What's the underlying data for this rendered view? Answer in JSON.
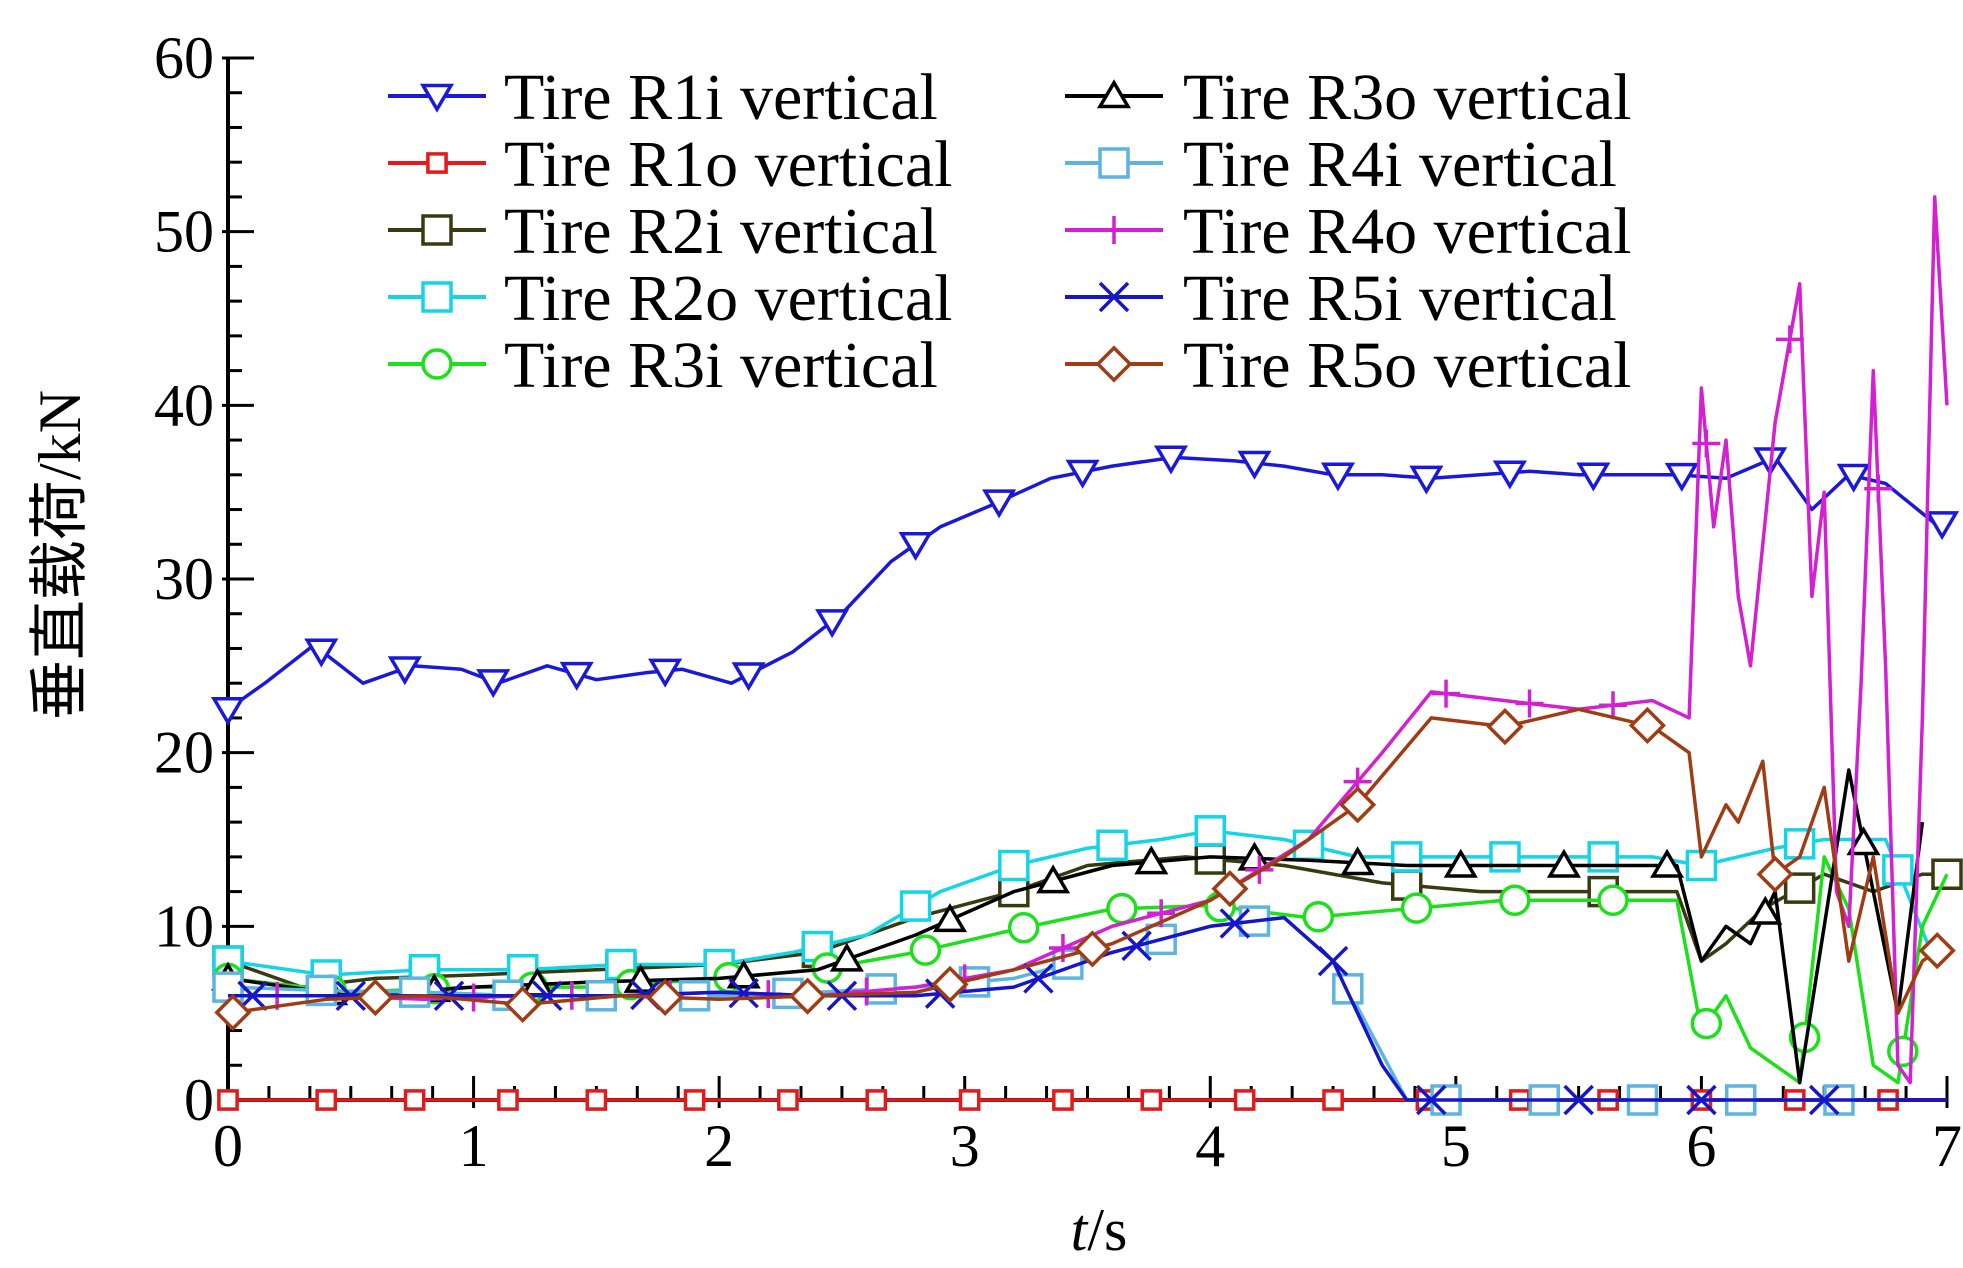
{
  "chart_data": {
    "type": "line",
    "xlabel_italic": "t",
    "xlabel_unit": "/s",
    "ylabel": "垂直载荷/kN",
    "xlim": [
      0,
      7
    ],
    "ylim": [
      0,
      60
    ],
    "xticks": [
      "0",
      "1",
      "2",
      "3",
      "4",
      "5",
      "6",
      "7"
    ],
    "yticks": [
      "0",
      "10",
      "20",
      "30",
      "40",
      "50",
      "60"
    ],
    "grid": false,
    "legend_placement": "top, two columns",
    "series": [
      {
        "name": "Tire R1i vertical",
        "color": "#1a1ad6",
        "marker": "triangle-down",
        "x": [
          0,
          0.15,
          0.35,
          0.55,
          0.75,
          0.95,
          1.1,
          1.3,
          1.5,
          1.7,
          1.85,
          2.05,
          2.3,
          2.5,
          2.7,
          2.9,
          3.1,
          3.35,
          3.6,
          3.85,
          4.1,
          4.3,
          4.5,
          4.7,
          4.9,
          5.1,
          5.3,
          5.5,
          5.7,
          5.9,
          6.1,
          6.3,
          6.45,
          6.6,
          6.75,
          6.95
        ],
        "y": [
          22.5,
          24,
          26.2,
          24,
          25,
          24.8,
          24,
          25,
          24.2,
          24.6,
          24.8,
          24,
          25.8,
          28,
          31,
          33,
          34.2,
          35.8,
          36.5,
          37,
          36.8,
          36.5,
          36,
          36,
          35.8,
          36,
          36.2,
          36,
          36,
          36,
          35.8,
          37,
          34,
          36,
          35.5,
          33.2
        ],
        "markers_x": [
          0,
          0.38,
          0.72,
          1.08,
          1.42,
          1.78,
          2.12,
          2.46,
          2.8,
          3.14,
          3.48,
          3.84,
          4.18,
          4.52,
          4.88,
          5.22,
          5.56,
          5.92,
          6.28,
          6.62,
          6.98
        ]
      },
      {
        "name": "Tire R1o vertical",
        "color": "#e31a1a",
        "marker": "square-small",
        "x": [
          0,
          7
        ],
        "y": [
          0,
          0
        ],
        "markers_x": [
          0,
          0.4,
          0.76,
          1.14,
          1.5,
          1.9,
          2.28,
          2.64,
          3.02,
          3.4,
          3.76,
          4.14,
          4.5,
          4.88,
          5.26,
          5.62,
          6.0,
          6.38,
          6.76
        ]
      },
      {
        "name": "Tire R2i vertical",
        "color": "#3a3a10",
        "marker": "square",
        "x": [
          0,
          0.3,
          0.6,
          1.0,
          1.5,
          2.0,
          2.4,
          2.8,
          3.2,
          3.5,
          3.9,
          4.3,
          4.7,
          5.1,
          5.5,
          5.9,
          6.0,
          6.1,
          6.25,
          6.5,
          6.7,
          6.9,
          7.0
        ],
        "y": [
          8,
          6.5,
          7,
          7.2,
          7.5,
          7.8,
          8.5,
          10.5,
          12,
          13.5,
          14,
          13.5,
          12.5,
          12,
          12,
          12,
          8,
          9,
          11,
          13,
          12,
          13,
          13
        ],
        "markers_x": [
          0,
          0.8,
          1.6,
          2.4,
          3.2,
          4.0,
          4.8,
          5.6,
          6.4,
          7.0
        ]
      },
      {
        "name": "Tire R2o vertical",
        "color": "#14d4e8",
        "marker": "square",
        "x": [
          0,
          0.4,
          0.8,
          1.2,
          1.6,
          2.0,
          2.3,
          2.6,
          2.9,
          3.2,
          3.5,
          3.8,
          4.0,
          4.3,
          4.6,
          5.0,
          5.4,
          5.8,
          6.0,
          6.3,
          6.5,
          6.75,
          6.95
        ],
        "y": [
          8,
          7.2,
          7.5,
          7.5,
          7.8,
          7.8,
          8.5,
          9.5,
          12,
          13.5,
          14.5,
          15,
          15.5,
          15,
          14,
          14,
          14,
          14,
          13.5,
          14.5,
          15,
          15,
          8
        ],
        "markers_x": [
          0,
          0.4,
          0.8,
          1.2,
          1.6,
          2.0,
          2.4,
          2.8,
          3.2,
          3.6,
          4.0,
          4.4,
          4.8,
          5.2,
          5.6,
          6.0,
          6.4,
          6.8
        ]
      },
      {
        "name": "Tire R3i vertical",
        "color": "#1ce01c",
        "marker": "circle",
        "x": [
          0,
          0.5,
          1.0,
          1.5,
          2.0,
          2.4,
          2.8,
          3.2,
          3.6,
          4.0,
          4.4,
          4.8,
          5.2,
          5.6,
          5.9,
          6.0,
          6.1,
          6.2,
          6.3,
          6.4,
          6.5,
          6.6,
          6.7,
          6.8,
          6.9,
          7.0
        ],
        "y": [
          7,
          6.2,
          6.5,
          6.5,
          7,
          7.5,
          8.5,
          9.8,
          11,
          11.2,
          10.5,
          11,
          11.5,
          11.5,
          11.5,
          4,
          6,
          3,
          2,
          1,
          14,
          11,
          2,
          1,
          10,
          13
        ],
        "markers_x": [
          0,
          0.42,
          0.84,
          1.24,
          1.64,
          2.04,
          2.44,
          2.84,
          3.24,
          3.64,
          4.04,
          4.44,
          4.84,
          5.24,
          5.64,
          6.02,
          6.42,
          6.82
        ]
      },
      {
        "name": "Tire R3o vertical",
        "color": "#000000",
        "marker": "triangle-up",
        "x": [
          0,
          0.5,
          1.0,
          1.5,
          2.0,
          2.4,
          2.8,
          3.2,
          3.6,
          4.0,
          4.4,
          4.8,
          5.2,
          5.6,
          5.9,
          6.0,
          6.1,
          6.2,
          6.3,
          6.4,
          6.5,
          6.6,
          6.7,
          6.8,
          6.9
        ],
        "y": [
          7,
          6,
          6.5,
          6.8,
          7,
          7.5,
          9.5,
          12,
          13.5,
          14,
          13.8,
          13.5,
          13.5,
          13.5,
          13.5,
          8,
          10,
          9,
          12,
          1,
          10,
          19,
          12,
          5,
          16
        ],
        "markers_x": [
          0,
          0.42,
          0.84,
          1.26,
          1.68,
          2.1,
          2.52,
          2.94,
          3.36,
          3.76,
          4.18,
          4.6,
          5.02,
          5.44,
          5.86,
          6.26,
          6.66
        ]
      },
      {
        "name": "Tire R4i vertical",
        "color": "#5cb4e0",
        "marker": "square",
        "x": [
          0,
          0.4,
          0.8,
          1.2,
          1.6,
          2.0,
          2.4,
          2.8,
          3.2,
          3.6,
          4.0,
          4.3,
          4.5,
          4.8,
          5.2,
          5.6,
          6.0,
          6.4,
          6.6,
          6.8
        ],
        "y": [
          6.5,
          6.3,
          6.2,
          6.0,
          6.0,
          6.0,
          6.2,
          6.5,
          7,
          8.5,
          10,
          10.5,
          8,
          0,
          0,
          0,
          0,
          0,
          0,
          0
        ],
        "markers_x": [
          0,
          0.38,
          0.76,
          1.14,
          1.52,
          1.9,
          2.28,
          2.66,
          3.04,
          3.42,
          3.8,
          4.18,
          4.56,
          4.96,
          5.36,
          5.76,
          6.16,
          6.56
        ]
      },
      {
        "name": "Tire R4o vertical",
        "color": "#d220d2",
        "marker": "plus",
        "x": [
          0,
          0.4,
          0.8,
          1.2,
          1.6,
          2.0,
          2.4,
          2.8,
          3.2,
          3.6,
          4.0,
          4.4,
          4.7,
          4.9,
          5.2,
          5.5,
          5.8,
          5.95,
          6.0,
          6.05,
          6.1,
          6.15,
          6.2,
          6.3,
          6.4,
          6.45,
          6.5,
          6.55,
          6.6,
          6.65,
          6.7,
          6.75,
          6.8,
          6.85,
          6.9,
          6.95,
          7.0
        ],
        "y": [
          6,
          6,
          5.8,
          6,
          6,
          6.2,
          6,
          6.5,
          7.5,
          10,
          11.5,
          15,
          20,
          23.5,
          23,
          22.5,
          23,
          22,
          41,
          33,
          38,
          29,
          25,
          39,
          47,
          29,
          35,
          12,
          10,
          24,
          42,
          25,
          2,
          1,
          22,
          52,
          40
        ],
        "markers_x": [
          0.2,
          0.6,
          1.0,
          1.4,
          1.8,
          2.2,
          2.6,
          3.0,
          3.4,
          3.8,
          4.2,
          4.6,
          4.96,
          5.3,
          5.64,
          6.02,
          6.36,
          6.72
        ]
      },
      {
        "name": "Tire R5i vertical",
        "color": "#1616c8",
        "marker": "x",
        "x": [
          0,
          0.4,
          0.8,
          1.2,
          1.6,
          2.0,
          2.4,
          2.8,
          3.2,
          3.6,
          4.0,
          4.3,
          4.5,
          4.7,
          4.8,
          5.0,
          5.4,
          5.8,
          6.0,
          6.4,
          6.8,
          7.0
        ],
        "y": [
          6,
          6,
          6,
          6,
          6,
          6.2,
          6,
          6,
          6.5,
          8.5,
          10,
          10.5,
          8,
          2,
          0,
          0,
          0,
          0,
          0,
          0,
          0,
          0
        ],
        "markers_x": [
          0.1,
          0.5,
          0.9,
          1.3,
          1.7,
          2.1,
          2.5,
          2.9,
          3.3,
          3.7,
          4.1,
          4.5,
          4.9,
          5.5,
          6.0,
          6.5
        ]
      },
      {
        "name": "Tire R5o vertical",
        "color": "#a03c14",
        "marker": "diamond",
        "x": [
          0,
          0.4,
          0.8,
          1.2,
          1.6,
          2.0,
          2.4,
          2.8,
          3.2,
          3.6,
          4.0,
          4.3,
          4.6,
          4.9,
          5.2,
          5.5,
          5.8,
          5.95,
          6.0,
          6.1,
          6.15,
          6.25,
          6.3,
          6.4,
          6.5,
          6.6,
          6.7,
          6.8,
          6.9,
          7.0
        ],
        "y": [
          5,
          5.8,
          6,
          5.5,
          6,
          5.8,
          6,
          6.2,
          7.5,
          9,
          11.5,
          14,
          17,
          22,
          21.5,
          22.5,
          21.5,
          20,
          14,
          17,
          16,
          19.5,
          13,
          14,
          18,
          8,
          14,
          5,
          8,
          9
        ],
        "markers_x": [
          0.02,
          0.6,
          1.2,
          1.78,
          2.36,
          2.94,
          3.52,
          4.08,
          4.6,
          5.2,
          5.78,
          6.3,
          6.96
        ]
      }
    ]
  }
}
